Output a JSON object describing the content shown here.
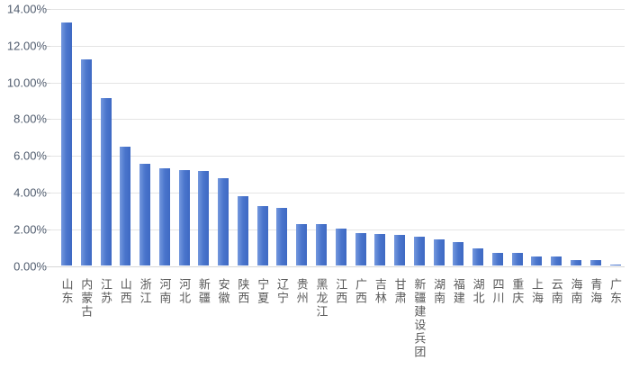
{
  "chart_data": {
    "type": "bar",
    "title": "",
    "xlabel": "",
    "ylabel": "",
    "unit": "percent",
    "ylim": [
      0,
      14
    ],
    "ytick_step": 2,
    "grid": "horizontal",
    "legend": "none",
    "background_color": "#FFFFFF",
    "bar_color": "#4472C4",
    "bar_gradient_left": "#7498DE",
    "bar_gradient_right": "#3E69C3",
    "gridline_color": "#E4E4E4",
    "axis_label_color": "#4F5B6D",
    "category_label_color": "#595959",
    "ytick_labels": [
      "14.00%",
      "12.00%",
      "10.00%",
      "8.00%",
      "6.00%",
      "4.00%",
      "2.00%",
      "0.00%"
    ],
    "categories": [
      "山东",
      "内蒙古",
      "江苏",
      "山西",
      "浙江",
      "河南",
      "河北",
      "新疆",
      "安徽",
      "陕西",
      "宁夏",
      "辽宁",
      "贵州",
      "黑龙江",
      "江西",
      "广西",
      "吉林",
      "甘肃",
      "新疆建设兵团",
      "湖南",
      "福建",
      "湖北",
      "四川",
      "重庆",
      "上海",
      "云南",
      "海南",
      "青海",
      "广东"
    ],
    "values": [
      13.25,
      11.25,
      9.15,
      6.5,
      5.55,
      5.3,
      5.2,
      5.15,
      4.8,
      3.8,
      3.25,
      3.15,
      2.3,
      2.3,
      2.05,
      1.8,
      1.72,
      1.7,
      1.6,
      1.47,
      1.28,
      0.96,
      0.72,
      0.7,
      0.52,
      0.5,
      0.31,
      0.3,
      0.08
    ]
  }
}
